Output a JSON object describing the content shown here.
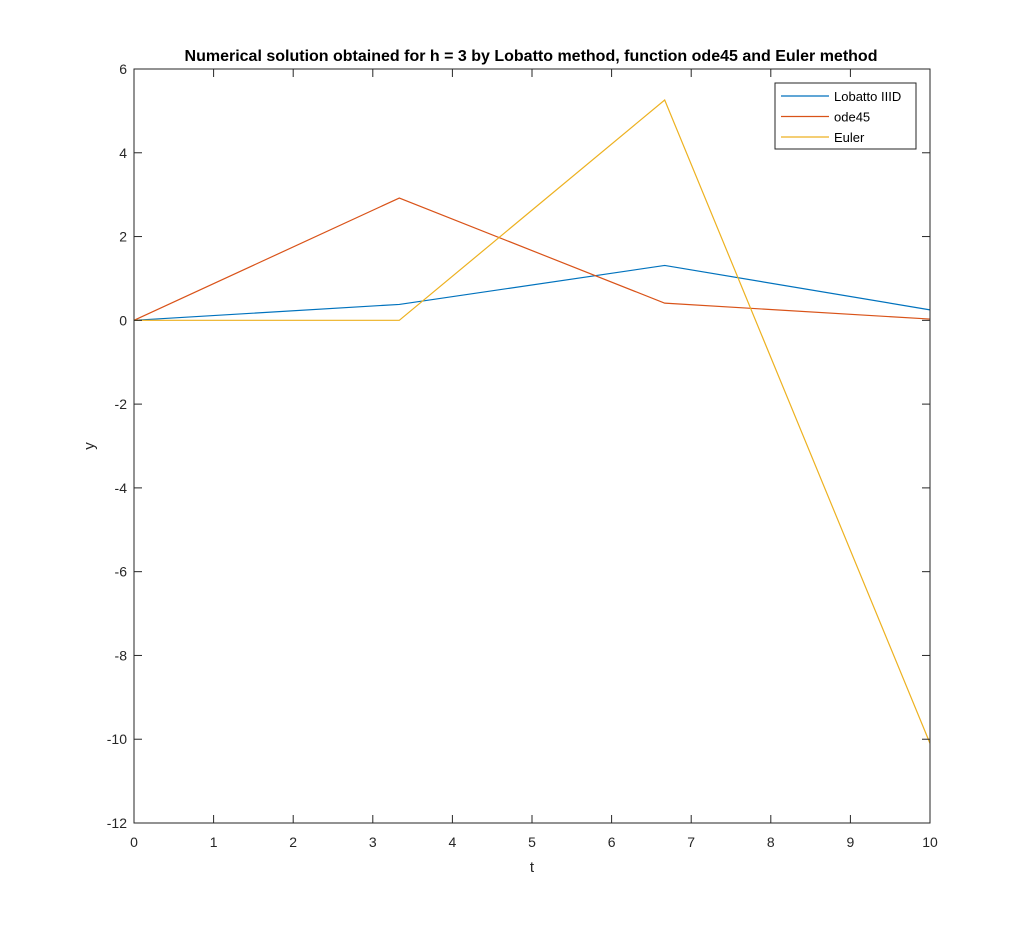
{
  "chart_data": {
    "type": "line",
    "title": "Numerical solution obtained for h = 3 by Lobatto method, function ode45 and Euler method",
    "xlabel": "t",
    "ylabel": "y",
    "xlim": [
      0,
      10
    ],
    "ylim": [
      -12,
      6
    ],
    "xticks": [
      0,
      1,
      2,
      3,
      4,
      5,
      6,
      7,
      8,
      9,
      10
    ],
    "yticks": [
      -12,
      -10,
      -8,
      -6,
      -4,
      -2,
      0,
      2,
      4,
      6
    ],
    "x": [
      0,
      3.333,
      6.667,
      10
    ],
    "grid": false,
    "legend_position": "top-right",
    "series": [
      {
        "name": "Lobatto IIID",
        "color": "#0072BD",
        "values": [
          0,
          0.38,
          1.31,
          0.25
        ]
      },
      {
        "name": "ode45",
        "color": "#D95319",
        "values": [
          0,
          2.92,
          0.41,
          0.03
        ]
      },
      {
        "name": "Euler",
        "color": "#EDB120",
        "values": [
          0,
          0,
          5.26,
          -10.1
        ]
      }
    ]
  }
}
